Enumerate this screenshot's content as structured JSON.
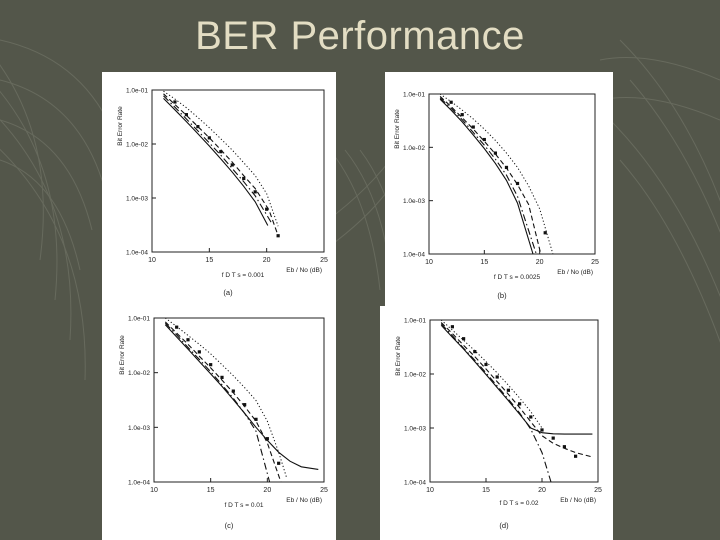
{
  "slide": {
    "title": "BER Performance",
    "background_color": "#53564a",
    "title_color": "#e3ddc3"
  },
  "chart_data": [
    {
      "type": "line",
      "caption": "(a)",
      "param_label": "f D T s = 0.001",
      "ylabel": "Bit Error Rate",
      "xlabel": "Eb / No (dB)",
      "xlim": [
        10,
        25
      ],
      "ylim": [
        0.0001,
        0.1
      ],
      "yscale": "log",
      "xticks": [
        "10",
        "15",
        "20",
        "25"
      ],
      "yticks": [
        "1.0e-01",
        "1.0e-02",
        "1.0e-03",
        "1.0e-04"
      ],
      "series": [
        {
          "style": "solid",
          "x": [
            11,
            12,
            13,
            14,
            15,
            16,
            17,
            18,
            19,
            20.1
          ],
          "y": [
            0.07,
            0.043,
            0.026,
            0.0155,
            0.0092,
            0.0053,
            0.003,
            0.00165,
            0.00085,
            0.00031
          ]
        },
        {
          "style": "dashdot",
          "x": [
            11,
            12,
            13,
            14,
            15,
            16,
            17,
            18,
            19,
            20.4
          ],
          "y": [
            0.078,
            0.048,
            0.029,
            0.0175,
            0.0105,
            0.0062,
            0.0035,
            0.002,
            0.0011,
            0.00035
          ]
        },
        {
          "style": "dashed",
          "x": [
            11,
            12,
            13,
            14,
            15,
            16,
            17,
            18,
            19,
            20.2,
            20.9
          ],
          "y": [
            0.085,
            0.054,
            0.034,
            0.021,
            0.013,
            0.0078,
            0.0046,
            0.0026,
            0.0015,
            0.0006,
            0.00023
          ]
        },
        {
          "style": "dotted",
          "x": [
            11,
            12,
            13,
            14,
            15,
            16,
            17,
            18,
            19,
            20,
            21
          ],
          "y": [
            0.095,
            0.068,
            0.047,
            0.031,
            0.02,
            0.0125,
            0.0077,
            0.0045,
            0.0026,
            0.0012,
            0.0003
          ]
        },
        {
          "style": "markers",
          "x": [
            12,
            13,
            14,
            15,
            16,
            17,
            18,
            19,
            20,
            21
          ],
          "y": [
            0.06,
            0.035,
            0.021,
            0.013,
            0.0072,
            0.0041,
            0.0023,
            0.0013,
            0.00062,
            0.0002
          ]
        }
      ]
    },
    {
      "type": "line",
      "caption": "(b)",
      "param_label": "f D T s = 0.0025",
      "ylabel": "Bit Error Rate",
      "xlabel": "Eb / No (dB)",
      "xlim": [
        10,
        25
      ],
      "ylim": [
        0.0001,
        0.1
      ],
      "yscale": "log",
      "xticks": [
        "10",
        "15",
        "20",
        "25"
      ],
      "yticks": [
        "1.0e-01",
        "1.0e-02",
        "1.0e-03",
        "1.0e-04"
      ],
      "series": [
        {
          "style": "solid",
          "x": [
            11,
            12,
            13,
            14,
            15,
            16,
            17,
            18,
            19.4
          ],
          "y": [
            0.08,
            0.05,
            0.03,
            0.017,
            0.0095,
            0.005,
            0.0024,
            0.0009,
            0.0001
          ]
        },
        {
          "style": "dashdot",
          "x": [
            11,
            12,
            13,
            14,
            15,
            16,
            17,
            18,
            19.7
          ],
          "y": [
            0.085,
            0.054,
            0.033,
            0.019,
            0.011,
            0.006,
            0.003,
            0.0012,
            0.0001
          ]
        },
        {
          "style": "dashed",
          "x": [
            11,
            12,
            13,
            14,
            15,
            16,
            17,
            18,
            19,
            20.1
          ],
          "y": [
            0.09,
            0.058,
            0.036,
            0.022,
            0.013,
            0.0075,
            0.0041,
            0.002,
            0.00085,
            0.0001
          ]
        },
        {
          "style": "dotted",
          "x": [
            11,
            12,
            13,
            14,
            15,
            16,
            17,
            18,
            19,
            20,
            21.2
          ],
          "y": [
            0.1,
            0.072,
            0.05,
            0.034,
            0.022,
            0.0135,
            0.0078,
            0.0042,
            0.0019,
            0.0007,
            0.0001
          ]
        },
        {
          "style": "markers",
          "x": [
            12,
            13,
            14,
            15,
            16,
            17,
            18,
            20.5
          ],
          "y": [
            0.07,
            0.041,
            0.024,
            0.014,
            0.0078,
            0.0042,
            0.0021,
            0.00025
          ]
        }
      ]
    },
    {
      "type": "line",
      "caption": "(c)",
      "param_label": "f D T s = 0.01",
      "ylabel": "Bit Error Rate",
      "xlabel": "Eb / No (dB)",
      "xlim": [
        10,
        25
      ],
      "ylim": [
        0.0001,
        0.1
      ],
      "yscale": "log",
      "xticks": [
        "10",
        "15",
        "20",
        "25"
      ],
      "yticks": [
        "1.0e-01",
        "1.0e-02",
        "1.0e-03",
        "1.0e-04"
      ],
      "series": [
        {
          "style": "solid",
          "x": [
            11,
            12,
            13,
            14,
            15,
            16,
            17,
            18,
            19,
            20,
            21,
            22,
            23,
            24.5
          ],
          "y": [
            0.075,
            0.045,
            0.027,
            0.016,
            0.0095,
            0.0056,
            0.0032,
            0.0018,
            0.001,
            0.00058,
            0.00035,
            0.00024,
            0.00019,
            0.00017
          ]
        },
        {
          "style": "dashdot",
          "x": [
            11,
            12,
            13,
            14,
            15,
            16,
            17,
            18,
            19,
            20.2
          ],
          "y": [
            0.08,
            0.049,
            0.029,
            0.0175,
            0.0104,
            0.006,
            0.0034,
            0.0018,
            0.00085,
            0.0001
          ]
        },
        {
          "style": "dashed",
          "x": [
            11,
            12,
            13,
            14,
            15,
            16,
            17,
            18,
            19,
            20,
            21.2
          ],
          "y": [
            0.085,
            0.053,
            0.033,
            0.02,
            0.0122,
            0.0073,
            0.0043,
            0.0024,
            0.0013,
            0.00052,
            0.0001
          ]
        },
        {
          "style": "dotted",
          "x": [
            11,
            12,
            13,
            14,
            15,
            16,
            17,
            18,
            19,
            20,
            21,
            21.7
          ],
          "y": [
            0.1,
            0.07,
            0.048,
            0.033,
            0.022,
            0.014,
            0.0088,
            0.0053,
            0.0031,
            0.0013,
            0.00035,
            0.00012
          ]
        },
        {
          "style": "markers",
          "x": [
            12,
            13,
            14,
            15,
            16,
            17,
            18,
            19,
            20,
            21
          ],
          "y": [
            0.068,
            0.04,
            0.024,
            0.014,
            0.0082,
            0.0046,
            0.0026,
            0.0014,
            0.00062,
            0.00022
          ]
        }
      ]
    },
    {
      "type": "line",
      "caption": "(d)",
      "param_label": "f D T s = 0.02",
      "ylabel": "Bit Error Rate",
      "xlabel": "Eb / No (dB)",
      "xlim": [
        10,
        25
      ],
      "ylim": [
        0.0001,
        0.1
      ],
      "yscale": "log",
      "xticks": [
        "10",
        "15",
        "20",
        "25"
      ],
      "yticks": [
        "1.0e-01",
        "1.0e-02",
        "1.0e-03",
        "1.0e-04"
      ],
      "series": [
        {
          "style": "solid",
          "x": [
            11,
            12,
            13,
            14,
            15,
            16,
            17,
            18,
            19,
            20,
            21,
            22,
            23,
            24.5
          ],
          "y": [
            0.08,
            0.048,
            0.029,
            0.017,
            0.0098,
            0.0056,
            0.0032,
            0.0018,
            0.001,
            0.00082,
            0.00078,
            0.00077,
            0.00077,
            0.00077
          ]
        },
        {
          "style": "dashdot",
          "x": [
            11,
            12,
            13,
            14,
            15,
            16,
            17,
            18,
            19,
            20,
            20.8
          ],
          "y": [
            0.085,
            0.051,
            0.03,
            0.018,
            0.0105,
            0.006,
            0.0034,
            0.0019,
            0.00095,
            0.00035,
            0.0001
          ]
        },
        {
          "style": "dashed",
          "x": [
            11,
            12,
            13,
            14,
            15,
            16,
            17,
            18,
            19,
            20,
            21,
            22,
            23,
            24.5
          ],
          "y": [
            0.09,
            0.056,
            0.034,
            0.021,
            0.0124,
            0.0072,
            0.0042,
            0.0024,
            0.0013,
            0.00072,
            0.00052,
            0.00042,
            0.00035,
            0.00029
          ]
        },
        {
          "style": "dotted",
          "x": [
            11,
            12,
            13,
            14,
            15,
            16,
            17,
            18,
            19,
            20
          ],
          "y": [
            0.1,
            0.065,
            0.042,
            0.027,
            0.017,
            0.0105,
            0.0062,
            0.0036,
            0.002,
            0.001
          ]
        },
        {
          "style": "markers",
          "x": [
            12,
            13,
            14,
            15,
            16,
            17,
            18,
            19,
            20,
            21,
            22,
            23
          ],
          "y": [
            0.075,
            0.045,
            0.026,
            0.015,
            0.0088,
            0.005,
            0.0028,
            0.0016,
            0.00092,
            0.00065,
            0.00045,
            0.0003
          ]
        }
      ]
    }
  ]
}
